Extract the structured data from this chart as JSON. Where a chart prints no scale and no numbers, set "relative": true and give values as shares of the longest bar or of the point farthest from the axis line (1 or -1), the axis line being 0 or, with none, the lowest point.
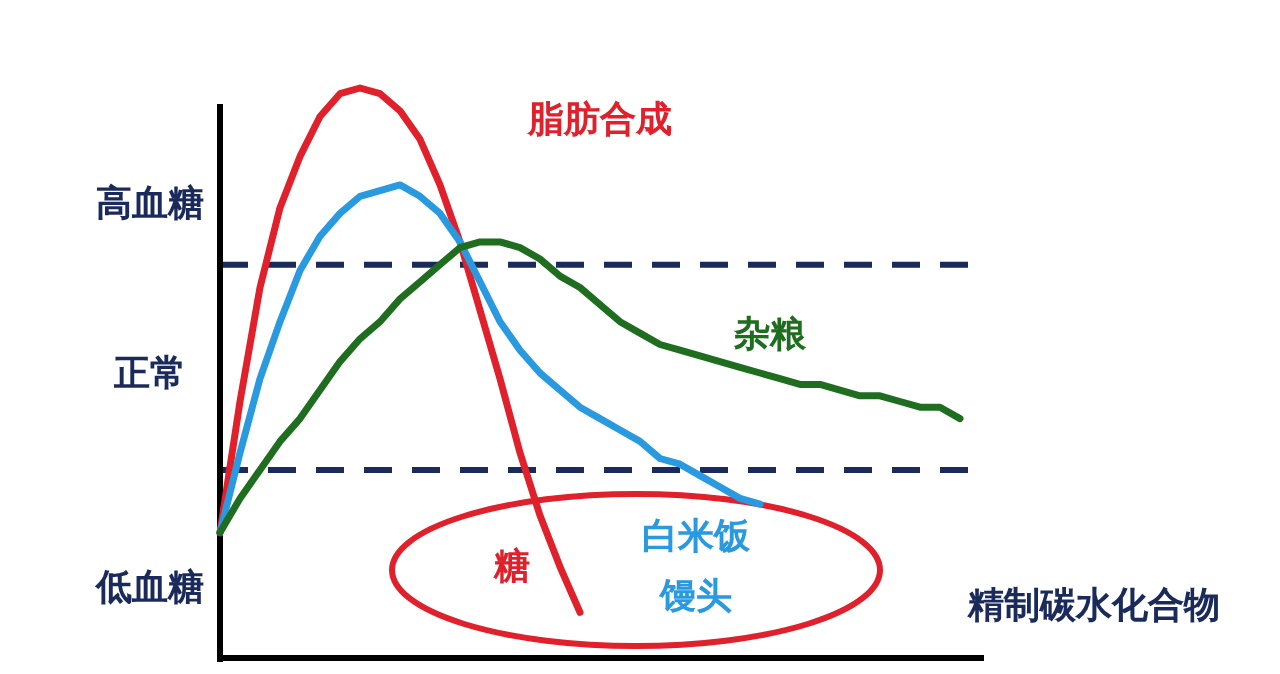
{
  "chart_data": {
    "type": "line",
    "relative": true,
    "legend": false,
    "grid": false,
    "marker": "none",
    "line_style": "solid",
    "categories": [
      null,
      null,
      null,
      null,
      null,
      null,
      null,
      null,
      null,
      null,
      null,
      null,
      null,
      null,
      null,
      null,
      null,
      null,
      null,
      null,
      null,
      null,
      null,
      null,
      null,
      null,
      null,
      null,
      null,
      null,
      null,
      null,
      null,
      null,
      null,
      null,
      null,
      null,
      null
    ],
    "series": [
      {
        "name": "糖",
        "color": "#e0202a",
        "values": [
          0.22,
          0.45,
          0.65,
          0.79,
          0.88,
          0.95,
          0.99,
          1.0,
          0.99,
          0.96,
          0.91,
          0.83,
          0.73,
          0.61,
          0.49,
          0.36,
          0.25,
          0.16,
          0.08,
          null,
          null,
          null,
          null,
          null,
          null,
          null,
          null,
          null,
          null,
          null,
          null,
          null,
          null,
          null,
          null,
          null,
          null,
          null,
          null
        ]
      },
      {
        "name": "白米饭馒头",
        "color": "#2a9ae0",
        "values": [
          0.22,
          0.36,
          0.49,
          0.59,
          0.68,
          0.74,
          0.78,
          0.81,
          0.82,
          0.83,
          0.81,
          0.78,
          0.73,
          0.66,
          0.59,
          0.54,
          0.5,
          0.47,
          0.44,
          0.42,
          0.4,
          0.38,
          0.35,
          0.34,
          0.32,
          0.3,
          0.28,
          0.27,
          null,
          null,
          null,
          null,
          null,
          null,
          null,
          null,
          null,
          null,
          null
        ]
      },
      {
        "name": "杂粮",
        "color": "#1f6e1f",
        "values": [
          0.22,
          0.28,
          0.33,
          0.38,
          0.42,
          0.47,
          0.52,
          0.56,
          0.59,
          0.63,
          0.66,
          0.69,
          0.72,
          0.73,
          0.73,
          0.72,
          0.7,
          0.67,
          0.65,
          0.62,
          0.59,
          0.57,
          0.55,
          0.54,
          0.53,
          0.52,
          0.51,
          0.5,
          0.49,
          0.48,
          0.48,
          0.47,
          0.46,
          0.46,
          0.45,
          0.44,
          0.44,
          0.42,
          null
        ]
      }
    ],
    "ref_lines": [
      {
        "axis": "y",
        "value": 0.69,
        "color": "#1a2a5a",
        "line_style": "dashed"
      },
      {
        "axis": "y",
        "value": 0.33,
        "color": "#1a2a5a",
        "line_style": "dashed"
      }
    ],
    "annotations": [
      "高血糖",
      "正常",
      "低血糖",
      "脂肪合成",
      "精制碳水化合物"
    ]
  }
}
